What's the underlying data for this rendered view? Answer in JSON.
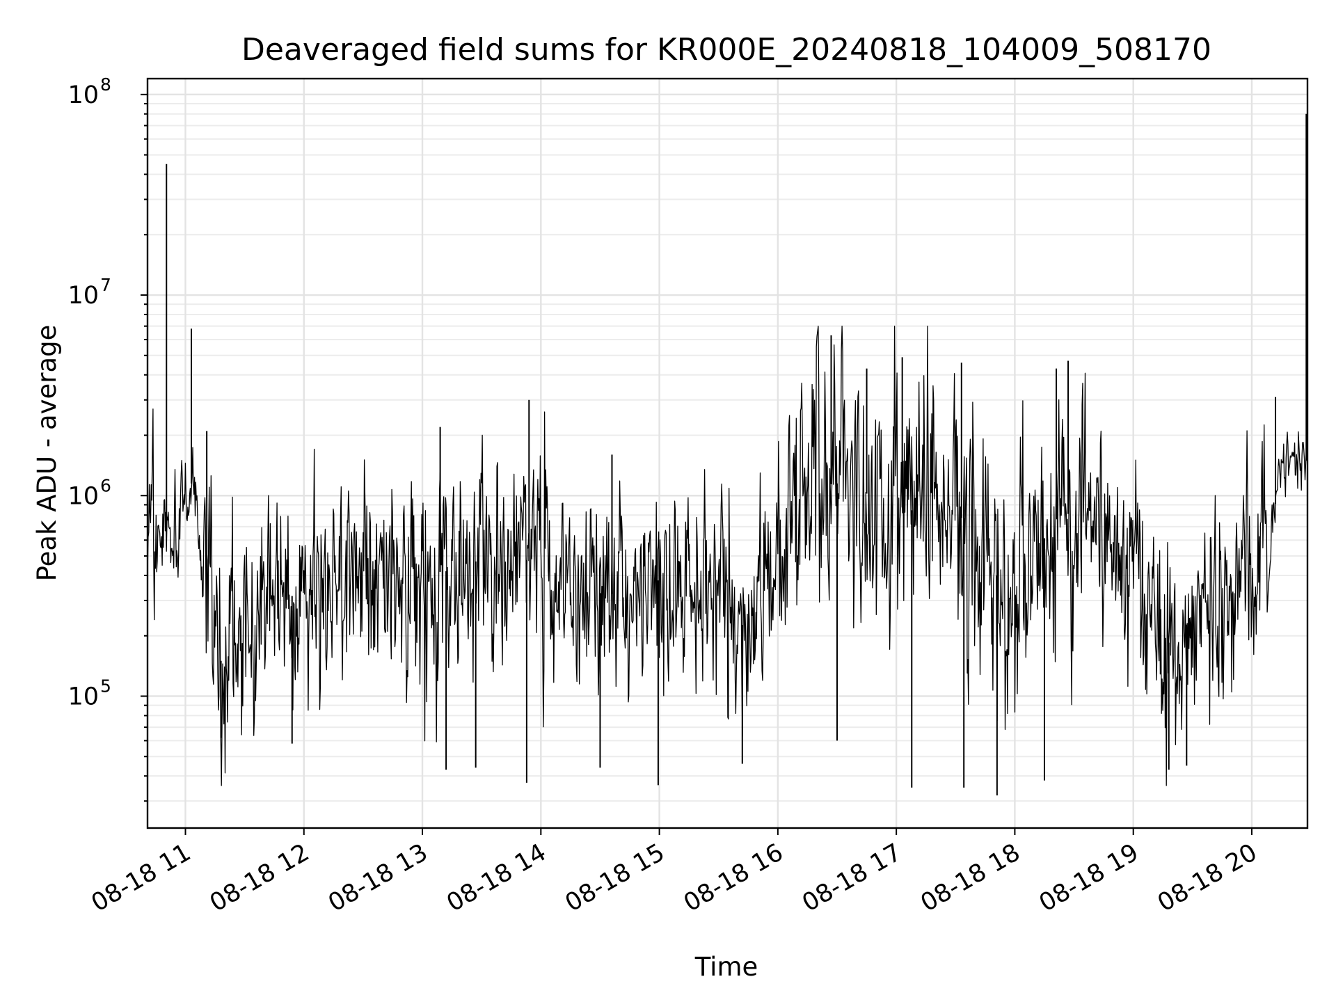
{
  "chart_data": {
    "type": "line",
    "title": "Deaveraged field sums for KR000E_20240818_104009_508170",
    "xlabel": "Time",
    "ylabel": "Peak ADU - average",
    "yscale": "log",
    "ylim": [
      22000,
      120000000
    ],
    "xlim": [
      10.68,
      20.47
    ],
    "grid": true,
    "x_ticks": [
      {
        "value": 11,
        "label": "08-18 11"
      },
      {
        "value": 12,
        "label": "08-18 12"
      },
      {
        "value": 13,
        "label": "08-18 13"
      },
      {
        "value": 14,
        "label": "08-18 14"
      },
      {
        "value": 15,
        "label": "08-18 15"
      },
      {
        "value": 16,
        "label": "08-18 16"
      },
      {
        "value": 17,
        "label": "08-18 17"
      },
      {
        "value": 18,
        "label": "08-18 18"
      },
      {
        "value": 19,
        "label": "08-18 19"
      },
      {
        "value": 20,
        "label": "08-18 20"
      }
    ],
    "y_ticks": [
      {
        "value": 100000,
        "base": "10",
        "exp": "5"
      },
      {
        "value": 1000000,
        "base": "10",
        "exp": "6"
      },
      {
        "value": 10000000,
        "base": "10",
        "exp": "7"
      },
      {
        "value": 100000000,
        "base": "10",
        "exp": "8"
      }
    ],
    "series": [
      {
        "name": "Peak ADU - average",
        "noise_seed": 20240818,
        "typical_log_spread": 0.9,
        "baseline_x": [
          10.68,
          10.8,
          10.95,
          11.05,
          11.15,
          11.3,
          11.5,
          11.7,
          12.0,
          12.3,
          12.6,
          12.9,
          13.2,
          13.5,
          13.8,
          14.1,
          14.4,
          14.7,
          15.0,
          15.3,
          15.55,
          15.75,
          15.9,
          16.05,
          16.2,
          16.5,
          16.8,
          17.1,
          17.4,
          17.7,
          17.85,
          18.0,
          18.2,
          18.4,
          18.6,
          18.8,
          19.0,
          19.2,
          19.35,
          19.5,
          19.7,
          19.9,
          20.05,
          20.15,
          20.25,
          20.35,
          20.47
        ],
        "baseline_y": [
          500000,
          650000,
          850000,
          1150000,
          500000,
          150000,
          250000,
          350000,
          300000,
          320000,
          330000,
          400000,
          420000,
          480000,
          500000,
          420000,
          330000,
          320000,
          380000,
          400000,
          330000,
          200000,
          380000,
          700000,
          1100000,
          1150000,
          1000000,
          850000,
          800000,
          750000,
          400000,
          300000,
          550000,
          850000,
          700000,
          500000,
          500000,
          280000,
          150000,
          280000,
          350000,
          380000,
          420000,
          550000,
          1500000,
          1450000,
          1500000
        ],
        "spikes": [
          {
            "x": 10.84,
            "y": 45000000
          },
          {
            "x": 11.05,
            "y": 6800000
          },
          {
            "x": 11.18,
            "y": 2100000
          },
          {
            "x": 13.15,
            "y": 2200000
          },
          {
            "x": 13.9,
            "y": 3000000
          },
          {
            "x": 14.6,
            "y": 1600000
          },
          {
            "x": 16.45,
            "y": 6300000
          },
          {
            "x": 16.75,
            "y": 4300000
          },
          {
            "x": 17.05,
            "y": 4900000
          },
          {
            "x": 17.55,
            "y": 4600000
          },
          {
            "x": 18.35,
            "y": 4300000
          },
          {
            "x": 18.45,
            "y": 4700000
          },
          {
            "x": 20.2,
            "y": 3100000
          },
          {
            "x": 20.46,
            "y": 80000000
          }
        ],
        "dips": [
          {
            "x": 11.3,
            "y": 62000
          },
          {
            "x": 11.9,
            "y": 58000
          },
          {
            "x": 13.2,
            "y": 43000
          },
          {
            "x": 13.45,
            "y": 44000
          },
          {
            "x": 13.88,
            "y": 37000
          },
          {
            "x": 14.5,
            "y": 44000
          },
          {
            "x": 14.99,
            "y": 36000
          },
          {
            "x": 15.7,
            "y": 46000
          },
          {
            "x": 16.5,
            "y": 60000
          },
          {
            "x": 17.13,
            "y": 35000
          },
          {
            "x": 17.57,
            "y": 35000
          },
          {
            "x": 17.85,
            "y": 32000
          },
          {
            "x": 18.25,
            "y": 38000
          },
          {
            "x": 19.3,
            "y": 43000
          },
          {
            "x": 19.45,
            "y": 45000
          }
        ]
      }
    ]
  }
}
